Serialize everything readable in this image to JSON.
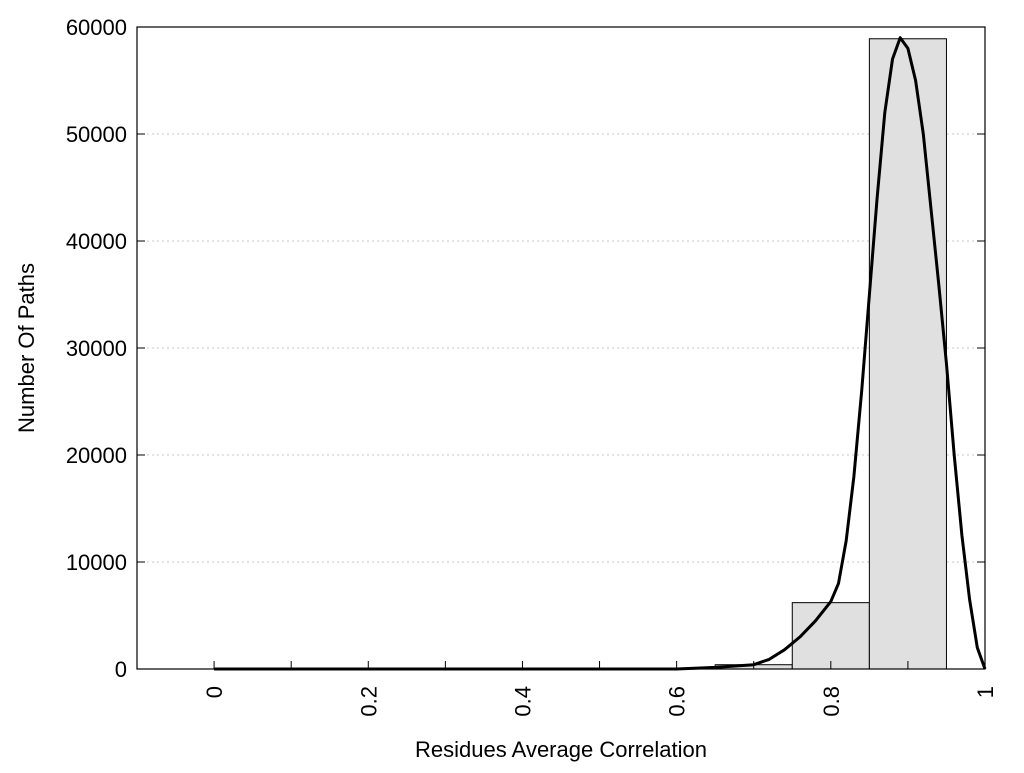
{
  "chart_data": {
    "type": "bar",
    "title": "",
    "xlabel": "Residues Average Correlation",
    "ylabel": "Number Of Paths",
    "xlim": [
      -0.1,
      1
    ],
    "ylim": [
      0,
      60000
    ],
    "grid": "horizontal-dotted",
    "legend": "none",
    "x_ticks": [
      0,
      0.2,
      0.4,
      0.6,
      0.8,
      1
    ],
    "x_tick_labels": [
      "0",
      "0.2",
      "0.4",
      "0.6",
      "0.8",
      "1"
    ],
    "y_ticks": [
      0,
      10000,
      20000,
      30000,
      40000,
      50000,
      60000
    ],
    "y_tick_labels": [
      "0",
      "10000",
      "20000",
      "30000",
      "40000",
      "50000",
      "60000"
    ],
    "bins": [
      {
        "x0": 0.0,
        "x1": 0.05,
        "value": 0
      },
      {
        "x0": 0.05,
        "x1": 0.15,
        "value": 0
      },
      {
        "x0": 0.15,
        "x1": 0.25,
        "value": 0
      },
      {
        "x0": 0.25,
        "x1": 0.35,
        "value": 0
      },
      {
        "x0": 0.35,
        "x1": 0.45,
        "value": 0
      },
      {
        "x0": 0.45,
        "x1": 0.55,
        "value": 0
      },
      {
        "x0": 0.55,
        "x1": 0.65,
        "value": 10
      },
      {
        "x0": 0.65,
        "x1": 0.75,
        "value": 400
      },
      {
        "x0": 0.75,
        "x1": 0.85,
        "value": 6200
      },
      {
        "x0": 0.85,
        "x1": 0.95,
        "value": 58900
      }
    ],
    "fit_curve": {
      "x": [
        0.0,
        0.6,
        0.65,
        0.7,
        0.72,
        0.74,
        0.76,
        0.78,
        0.8,
        0.81,
        0.82,
        0.83,
        0.84,
        0.85,
        0.86,
        0.87,
        0.88,
        0.89,
        0.9,
        0.91,
        0.92,
        0.93,
        0.94,
        0.95,
        0.96,
        0.97,
        0.98,
        0.99,
        1.0
      ],
      "y": [
        0,
        0,
        150,
        400,
        900,
        1800,
        3000,
        4500,
        6300,
        8000,
        12000,
        18000,
        26000,
        35000,
        44000,
        52000,
        57000,
        59000,
        58000,
        55000,
        50000,
        43000,
        36000,
        28500,
        20000,
        12500,
        6500,
        2000,
        0
      ]
    },
    "colors": {
      "bar_fill": "#e0e0e0",
      "bar_stroke": "#000000",
      "curve": "#000000",
      "grid": "#c8c8c8"
    }
  }
}
